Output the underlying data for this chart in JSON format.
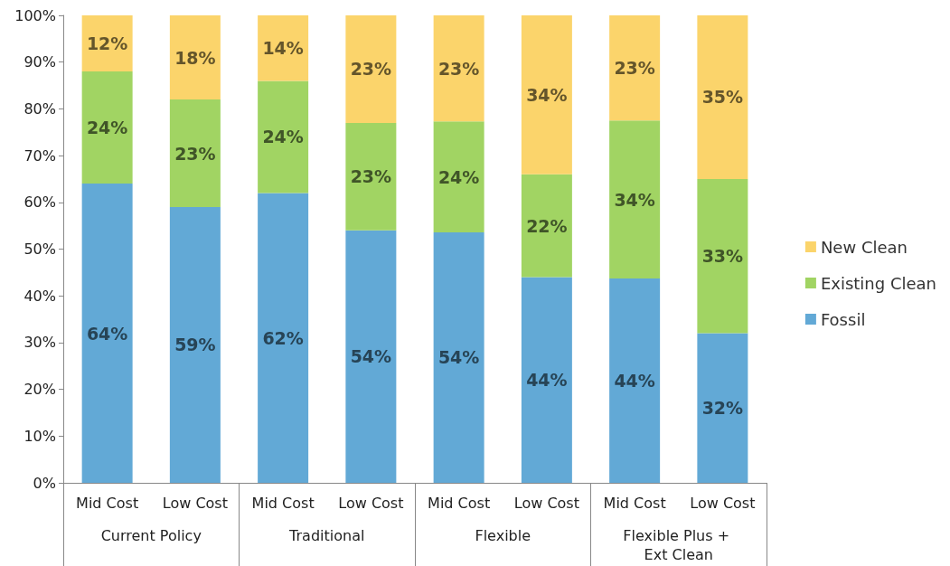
{
  "chart_data": {
    "type": "bar",
    "stacked": true,
    "categories": [
      "Mid Cost",
      "Low Cost",
      "Mid Cost",
      "Low Cost",
      "Mid Cost",
      "Low Cost",
      "Mid Cost",
      "Low Cost"
    ],
    "annotations": [
      "Current Policy",
      "Traditional",
      "Flexible",
      "Flexible Plus + Ext Clean"
    ],
    "series": [
      {
        "name": "Fossil",
        "color": "#62a9d6",
        "values": [
          64,
          59,
          62,
          54,
          53.6,
          44,
          43.7,
          32
        ],
        "value_labels": [
          "64%",
          "59%",
          "62%",
          "54%",
          "54%",
          "44%",
          "44%",
          "32%"
        ]
      },
      {
        "name": "Existing Clean",
        "color": "#a1d463",
        "values": [
          24,
          23,
          24,
          23,
          23.7,
          22,
          33.8,
          33
        ],
        "value_labels": [
          "24%",
          "23%",
          "24%",
          "23%",
          "24%",
          "22%",
          "34%",
          "33%"
        ]
      },
      {
        "name": "New Clean",
        "color": "#fbd46b",
        "values": [
          12,
          18,
          14,
          23,
          22.7,
          34,
          22.5,
          35
        ],
        "value_labels": [
          "12%",
          "18%",
          "14%",
          "23%",
          "23%",
          "34%",
          "23%",
          "35%"
        ]
      }
    ],
    "ylim": [
      0,
      100
    ],
    "yticks": [
      {
        "value": 0,
        "label": "0%"
      },
      {
        "value": 10,
        "label": "10%"
      },
      {
        "value": 20,
        "label": "20%"
      },
      {
        "value": 30,
        "label": "30%"
      },
      {
        "value": 40,
        "label": "40%"
      },
      {
        "value": 50,
        "label": "50%"
      },
      {
        "value": 60,
        "label": "60%"
      },
      {
        "value": 70,
        "label": "70%"
      },
      {
        "value": 80,
        "label": "80%"
      },
      {
        "value": 90,
        "label": "90%"
      },
      {
        "value": 100,
        "label": "100%"
      }
    ],
    "legend": "right"
  }
}
